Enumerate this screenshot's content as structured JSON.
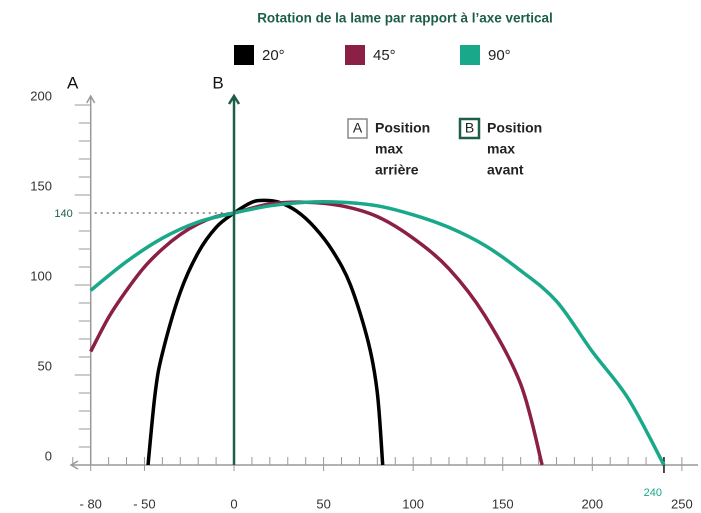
{
  "chart_data": {
    "type": "line",
    "title": "Rotation de la lame par rapport à l’axe vertical",
    "axis_labels": [
      "A",
      "B"
    ],
    "series": [
      {
        "name": "20°",
        "color": "#000000",
        "x": [
          -48,
          -44,
          -40,
          -30,
          -20,
          -10,
          0,
          10,
          17,
          25,
          35,
          45,
          55,
          65,
          75,
          80,
          83
        ],
        "values": [
          0,
          40,
          62,
          96,
          118,
          132,
          140,
          146,
          147,
          146,
          141,
          132,
          119,
          100,
          68,
          40,
          0
        ]
      },
      {
        "name": "45°",
        "color": "#8b1f45",
        "x": [
          -80,
          -70,
          -60,
          -50,
          -40,
          -30,
          -20,
          -10,
          0,
          20,
          40,
          60,
          80,
          100,
          120,
          140,
          160,
          172
        ],
        "values": [
          63,
          82,
          97,
          110,
          120,
          128,
          134,
          138,
          140,
          145,
          146,
          144,
          138,
          126,
          109,
          83,
          45,
          0
        ]
      },
      {
        "name": "90°",
        "color": "#1aa88a",
        "x": [
          -80,
          -60,
          -40,
          -20,
          0,
          20,
          40,
          60,
          80,
          100,
          120,
          140,
          160,
          180,
          200,
          220,
          240
        ],
        "values": [
          97,
          113,
          126,
          135,
          140,
          144,
          146,
          146,
          144,
          139,
          132,
          122,
          108,
          91,
          63,
          37,
          0
        ]
      }
    ],
    "position_boxes": [
      {
        "letter": "A",
        "color": "#888888",
        "text": [
          "Position",
          "max",
          "arrière"
        ]
      },
      {
        "letter": "B",
        "color": "#1c5e4a",
        "text": [
          "Position",
          "max",
          "avant"
        ]
      }
    ],
    "reference_lines": [
      {
        "axis": "y",
        "value": 140
      },
      {
        "axis": "x",
        "value": 240
      }
    ],
    "xlim": [
      -91,
      259
    ],
    "ylim": [
      0,
      205
    ],
    "xticks": [
      {
        "value": -80,
        "label": "- 80"
      },
      {
        "value": -50,
        "label": "- 50"
      },
      0,
      50,
      100,
      150,
      200,
      250
    ],
    "yticks": [
      0,
      50,
      100,
      150,
      200
    ]
  }
}
